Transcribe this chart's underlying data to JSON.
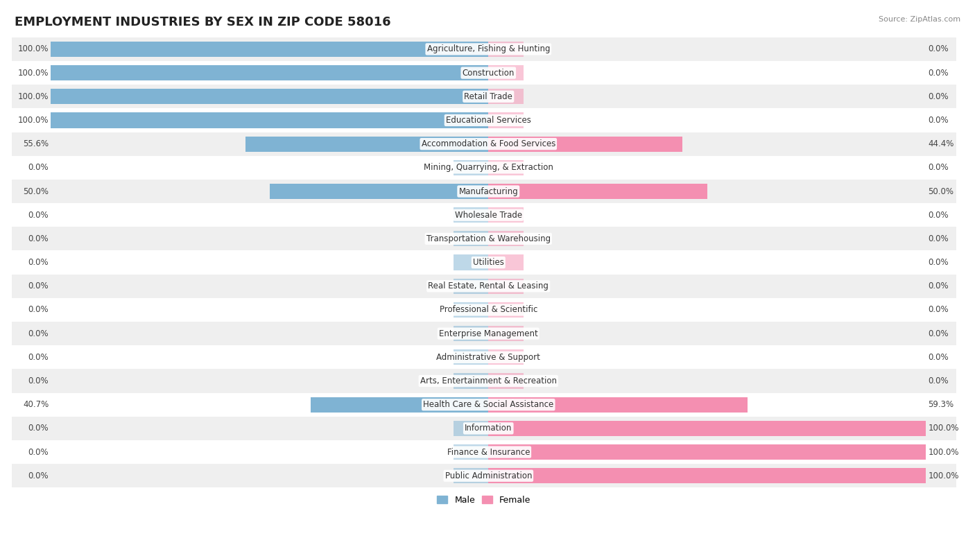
{
  "title": "EMPLOYMENT INDUSTRIES BY SEX IN ZIP CODE 58016",
  "source": "Source: ZipAtlas.com",
  "industries": [
    "Agriculture, Fishing & Hunting",
    "Construction",
    "Retail Trade",
    "Educational Services",
    "Accommodation & Food Services",
    "Mining, Quarrying, & Extraction",
    "Manufacturing",
    "Wholesale Trade",
    "Transportation & Warehousing",
    "Utilities",
    "Real Estate, Rental & Leasing",
    "Professional & Scientific",
    "Enterprise Management",
    "Administrative & Support",
    "Arts, Entertainment & Recreation",
    "Health Care & Social Assistance",
    "Information",
    "Finance & Insurance",
    "Public Administration"
  ],
  "male_pct": [
    100.0,
    100.0,
    100.0,
    100.0,
    55.6,
    0.0,
    50.0,
    0.0,
    0.0,
    0.0,
    0.0,
    0.0,
    0.0,
    0.0,
    0.0,
    40.7,
    0.0,
    0.0,
    0.0
  ],
  "female_pct": [
    0.0,
    0.0,
    0.0,
    0.0,
    44.4,
    0.0,
    50.0,
    0.0,
    0.0,
    0.0,
    0.0,
    0.0,
    0.0,
    0.0,
    0.0,
    59.3,
    100.0,
    100.0,
    100.0
  ],
  "male_color": "#7fb3d3",
  "female_color": "#f48fb1",
  "row_bg_odd": "#efefef",
  "row_bg_even": "#ffffff",
  "title_fontsize": 13,
  "label_fontsize": 8.5,
  "value_fontsize": 8.5,
  "legend_fontsize": 9,
  "bar_height": 0.65,
  "figsize": [
    14.06,
    7.76
  ],
  "dpi": 100
}
